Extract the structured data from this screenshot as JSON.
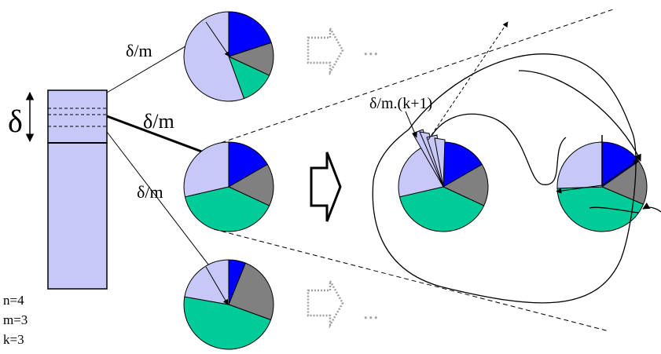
{
  "labels": {
    "delta": "δ",
    "dm_top": "δ/m",
    "dm_mid": "δ/m",
    "dm_bot": "δ/m",
    "dm_k1": "δ/m.(k+1)",
    "ellipsis_top": "...",
    "ellipsis_bot": "...",
    "n": "n=4",
    "m": "m=3",
    "k": "k=3"
  },
  "colors": {
    "lavender": "#c8c8f8",
    "blue": "#0000ff",
    "gray": "#808080",
    "green": "#00cc99",
    "stroke": "#000000",
    "dotted_arrow": "#a0a0a0"
  },
  "pies": [
    {
      "name": "pie-top",
      "slices": [
        {
          "color": "blue",
          "start": 0,
          "end": 72
        },
        {
          "color": "gray",
          "start": 72,
          "end": 115
        },
        {
          "color": "green",
          "start": 115,
          "end": 160
        },
        {
          "color": "lavender",
          "start": 160,
          "end": 360
        }
      ]
    },
    {
      "name": "pie-mid",
      "slices": [
        {
          "color": "blue",
          "start": 0,
          "end": 60
        },
        {
          "color": "gray",
          "start": 60,
          "end": 115
        },
        {
          "color": "green",
          "start": 115,
          "end": 257
        },
        {
          "color": "lavender",
          "start": 257,
          "end": 360
        }
      ]
    },
    {
      "name": "pie-bot",
      "slices": [
        {
          "color": "blue",
          "start": 0,
          "end": 22
        },
        {
          "color": "gray",
          "start": 22,
          "end": 110
        },
        {
          "color": "green",
          "start": 110,
          "end": 280
        },
        {
          "color": "lavender",
          "start": 280,
          "end": 360
        }
      ]
    },
    {
      "name": "pie-result-1",
      "slices": [
        {
          "color": "blue",
          "start": 0,
          "end": 60
        },
        {
          "color": "gray",
          "start": 60,
          "end": 115
        },
        {
          "color": "green",
          "start": 115,
          "end": 257
        },
        {
          "color": "lavender",
          "start": 257,
          "end": 360
        }
      ]
    },
    {
      "name": "pie-result-2",
      "slices": [
        {
          "color": "blue",
          "start": 0,
          "end": 55
        },
        {
          "color": "gray",
          "start": 55,
          "end": 113
        },
        {
          "color": "green",
          "start": 113,
          "end": 268
        },
        {
          "color": "lavender",
          "start": 268,
          "end": 360
        }
      ]
    }
  ]
}
